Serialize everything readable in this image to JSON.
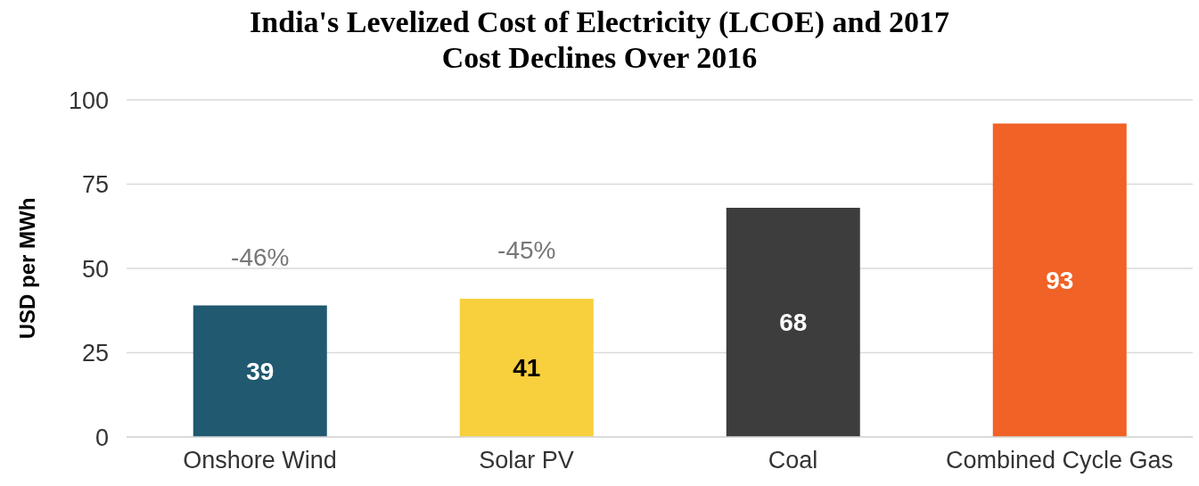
{
  "chart_data": {
    "type": "bar",
    "title": "India's Levelized Cost of Electricity (LCOE) and 2017 Cost Declines Over 2016",
    "ylabel": "USD per MWh",
    "categories": [
      "Onshore Wind",
      "Solar PV",
      "Coal",
      "Combined Cycle Gas"
    ],
    "values": [
      39,
      41,
      68,
      93
    ],
    "colors": [
      "#215970",
      "#f8cf3d",
      "#3d3d3d",
      "#f06226"
    ],
    "ylim": [
      0,
      100
    ],
    "yticks": [
      0,
      25,
      50,
      75,
      100
    ],
    "grid": "y",
    "data_labels": true,
    "annotations": [
      "-46%",
      "-45%"
    ]
  }
}
